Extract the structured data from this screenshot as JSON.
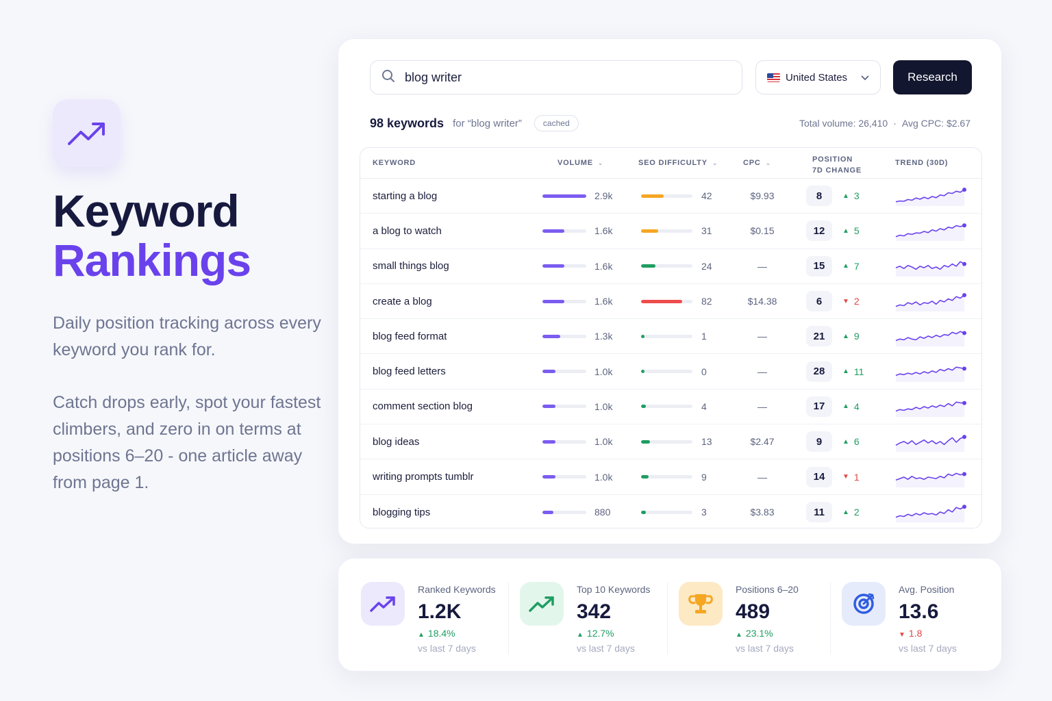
{
  "hero": {
    "title_line1": "Keyword",
    "title_line2": "Rankings",
    "description": "Daily position tracking across every keyword you rank for.",
    "description2": "Catch drops early, spot your fastest climbers, and zero in on terms at positions 6–20 - one article away from page 1."
  },
  "search": {
    "value": "blog writer",
    "country": "United States",
    "button": "Research"
  },
  "summary": {
    "count": "98 keywords",
    "for_text": "for “blog writer”",
    "badge": "cached",
    "total_volume": "Total volume: 26,410",
    "separator": "·",
    "avg_cpc": "Avg CPC: $2.67"
  },
  "table": {
    "headers": {
      "keyword": "KEYWORD",
      "volume": "VOLUME",
      "seo": "SEO DIFFICULTY",
      "cpc": "CPC",
      "position_l1": "POSITION",
      "position_l2": "7D CHANGE",
      "trend": "TREND (30D)"
    },
    "rows": [
      {
        "keyword": "starting a blog",
        "volume": "2.9k",
        "volume_fill": 1.0,
        "seo": "42",
        "seo_level": 0.42,
        "seo_color": "#f5a623",
        "cpc": "$9.93",
        "position": "8",
        "change": "3",
        "dir": "up",
        "trend": [
          0.15,
          0.2,
          0.18,
          0.3,
          0.25,
          0.4,
          0.32,
          0.45,
          0.35,
          0.5,
          0.42,
          0.6,
          0.55,
          0.75,
          0.7,
          0.85,
          0.78,
          0.95
        ]
      },
      {
        "keyword": "a blog to watch",
        "volume": "1.6k",
        "volume_fill": 0.5,
        "seo": "31",
        "seo_level": 0.31,
        "seo_color": "#f5a623",
        "cpc": "$0.15",
        "position": "12",
        "change": "5",
        "dir": "up",
        "trend": [
          0.15,
          0.25,
          0.2,
          0.35,
          0.3,
          0.4,
          0.38,
          0.5,
          0.42,
          0.6,
          0.52,
          0.68,
          0.6,
          0.78,
          0.72,
          0.88,
          0.82,
          0.9
        ]
      },
      {
        "keyword": "small things blog",
        "volume": "1.6k",
        "volume_fill": 0.5,
        "seo": "24",
        "seo_level": 0.24,
        "seo_color": "#1f9e62",
        "cpc": "—",
        "position": "15",
        "change": "7",
        "dir": "up",
        "trend": [
          0.45,
          0.55,
          0.4,
          0.6,
          0.5,
          0.35,
          0.55,
          0.45,
          0.6,
          0.4,
          0.5,
          0.35,
          0.6,
          0.5,
          0.7,
          0.55,
          0.85,
          0.7
        ]
      },
      {
        "keyword": "create a blog",
        "volume": "1.6k",
        "volume_fill": 0.5,
        "seo": "82",
        "seo_level": 0.82,
        "seo_color": "#ee4b4b",
        "cpc": "$14.38",
        "position": "6",
        "change": "2",
        "dir": "down",
        "trend": [
          0.2,
          0.3,
          0.25,
          0.45,
          0.35,
          0.5,
          0.3,
          0.45,
          0.4,
          0.55,
          0.35,
          0.6,
          0.5,
          0.7,
          0.6,
          0.85,
          0.75,
          0.95
        ]
      },
      {
        "keyword": "blog feed format",
        "volume": "1.3k",
        "volume_fill": 0.4,
        "seo": "1",
        "seo_level": 0.01,
        "seo_color": "#1f9e62",
        "cpc": "—",
        "position": "21",
        "change": "9",
        "dir": "up",
        "trend": [
          0.25,
          0.35,
          0.3,
          0.45,
          0.35,
          0.3,
          0.5,
          0.4,
          0.55,
          0.45,
          0.6,
          0.5,
          0.65,
          0.6,
          0.8,
          0.7,
          0.85,
          0.75
        ]
      },
      {
        "keyword": "blog feed letters",
        "volume": "1.0k",
        "volume_fill": 0.3,
        "seo": "0",
        "seo_level": 0.0,
        "seo_color": "#1f9e62",
        "cpc": "—",
        "position": "28",
        "change": "11",
        "dir": "up",
        "trend": [
          0.3,
          0.4,
          0.35,
          0.45,
          0.38,
          0.5,
          0.4,
          0.55,
          0.45,
          0.6,
          0.5,
          0.7,
          0.6,
          0.75,
          0.65,
          0.85,
          0.8,
          0.75
        ]
      },
      {
        "keyword": "comment section blog",
        "volume": "1.0k",
        "volume_fill": 0.3,
        "seo": "4",
        "seo_level": 0.04,
        "seo_color": "#1f9e62",
        "cpc": "—",
        "position": "17",
        "change": "4",
        "dir": "up",
        "trend": [
          0.25,
          0.35,
          0.3,
          0.4,
          0.35,
          0.5,
          0.4,
          0.55,
          0.45,
          0.6,
          0.5,
          0.65,
          0.55,
          0.75,
          0.6,
          0.85,
          0.8,
          0.78
        ]
      },
      {
        "keyword": "blog ideas",
        "volume": "1.0k",
        "volume_fill": 0.3,
        "seo": "13",
        "seo_level": 0.13,
        "seo_color": "#1f9e62",
        "cpc": "$2.47",
        "position": "9",
        "change": "6",
        "dir": "up",
        "trend": [
          0.3,
          0.45,
          0.55,
          0.4,
          0.6,
          0.35,
          0.5,
          0.65,
          0.45,
          0.6,
          0.4,
          0.55,
          0.35,
          0.6,
          0.8,
          0.5,
          0.75,
          0.85
        ]
      },
      {
        "keyword": "writing prompts tumblr",
        "volume": "1.0k",
        "volume_fill": 0.3,
        "seo": "9",
        "seo_level": 0.09,
        "seo_color": "#1f9e62",
        "cpc": "—",
        "position": "14",
        "change": "1",
        "dir": "down",
        "trend": [
          0.35,
          0.45,
          0.55,
          0.4,
          0.6,
          0.45,
          0.5,
          0.4,
          0.55,
          0.5,
          0.45,
          0.6,
          0.5,
          0.75,
          0.65,
          0.8,
          0.7,
          0.75
        ]
      },
      {
        "keyword": "blogging tips",
        "volume": "880",
        "volume_fill": 0.25,
        "seo": "3",
        "seo_level": 0.03,
        "seo_color": "#1f9e62",
        "cpc": "$3.83",
        "position": "11",
        "change": "2",
        "dir": "up",
        "trend": [
          0.2,
          0.3,
          0.25,
          0.4,
          0.3,
          0.45,
          0.35,
          0.5,
          0.4,
          0.45,
          0.35,
          0.55,
          0.45,
          0.7,
          0.55,
          0.85,
          0.75,
          0.9
        ]
      }
    ]
  },
  "stats": [
    {
      "label": "Ranked Keywords",
      "value": "1.2K",
      "delta": "18.4%",
      "dir": "up",
      "vs": "vs last 7 days",
      "icon": "trend-up-icon",
      "bg": "#ece9fc",
      "color": "#6a42ec"
    },
    {
      "label": "Top 10 Keywords",
      "value": "342",
      "delta": "12.7%",
      "dir": "up",
      "vs": "vs last 7 days",
      "icon": "trend-up-icon",
      "bg": "#e3f6ec",
      "color": "#1f9e62"
    },
    {
      "label": "Positions 6–20",
      "value": "489",
      "delta": "23.1%",
      "dir": "up",
      "vs": "vs last 7 days",
      "icon": "trophy-icon",
      "bg": "#fde9c4",
      "color": "#f5a623"
    },
    {
      "label": "Avg. Position",
      "value": "13.6",
      "delta": "1.8",
      "dir": "down",
      "vs": "vs last 7 days",
      "icon": "target-icon",
      "bg": "#e6ebfb",
      "color": "#2f5de0"
    }
  ],
  "colors": {
    "accent": "#6a42ec",
    "volume_bar": "#7b5cf0",
    "up": "#1f9e62",
    "down": "#e24646",
    "dark_button": "#12162e"
  }
}
